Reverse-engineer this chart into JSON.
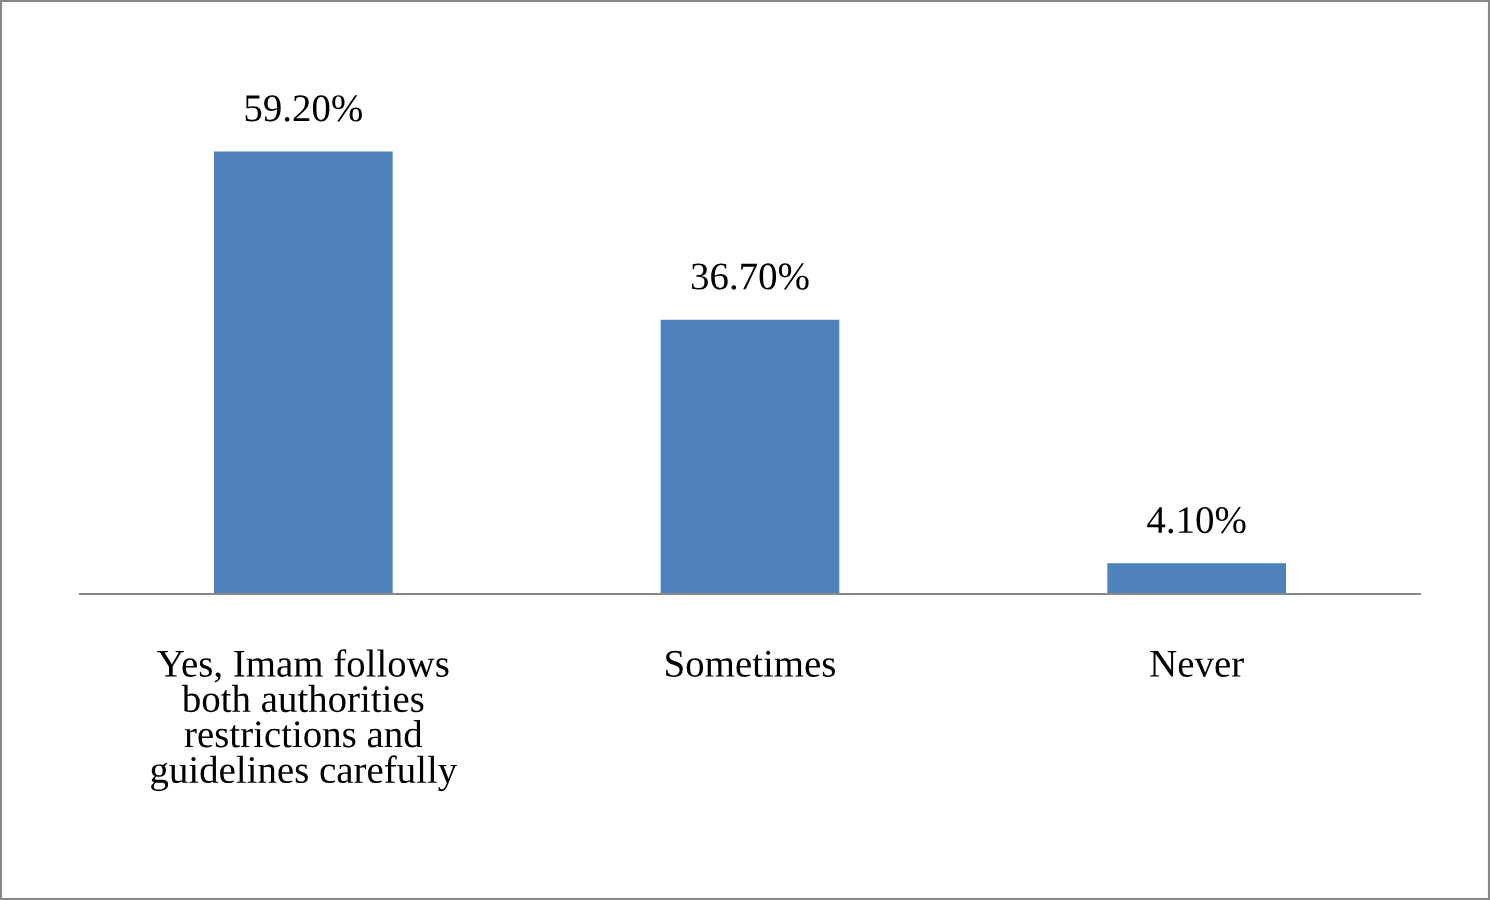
{
  "chart_data": {
    "type": "bar",
    "categories": [
      "Yes, Imam follows\nboth authorities\nrestrictions and\nguidelines carefully",
      "Sometimes",
      "Never"
    ],
    "values": [
      59.2,
      36.7,
      4.1
    ],
    "value_labels": [
      "59.20%",
      "36.70%",
      "4.10%"
    ],
    "color": "#4f81bd",
    "grid": false,
    "legend": false
  }
}
